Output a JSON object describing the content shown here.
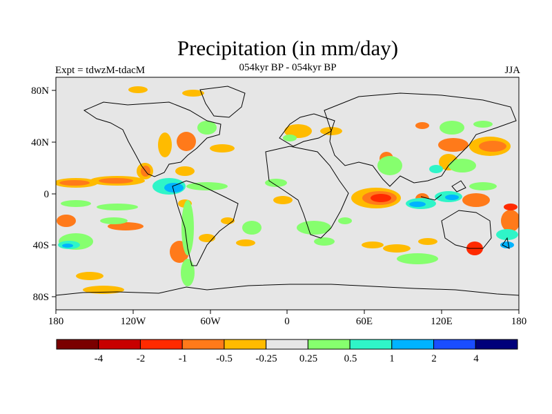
{
  "title": "Precipitation (in mm/day)",
  "experiment_label": "Expt = tdwzM-tdacM",
  "period_label": "054kyr BP - 054kyr BP",
  "season_label": "JJA",
  "axes": {
    "lon_ticks": [
      "180",
      "120W",
      "60W",
      "0",
      "60E",
      "120E",
      "180"
    ],
    "lat_ticks": [
      "80N",
      "40N",
      "0",
      "40S",
      "80S"
    ]
  },
  "colorbar": {
    "colors": [
      "#7a0000",
      "#c80000",
      "#ff2a00",
      "#ff7a1a",
      "#ffbb00",
      "#e6e6e6",
      "#86ff6e",
      "#2ff5c8",
      "#00b3ff",
      "#1a4dff",
      "#00007a"
    ],
    "labels": [
      "-4",
      "-2",
      "-1",
      "-0.5",
      "-0.25",
      "0.25",
      "0.5",
      "1",
      "2",
      "4"
    ]
  }
}
